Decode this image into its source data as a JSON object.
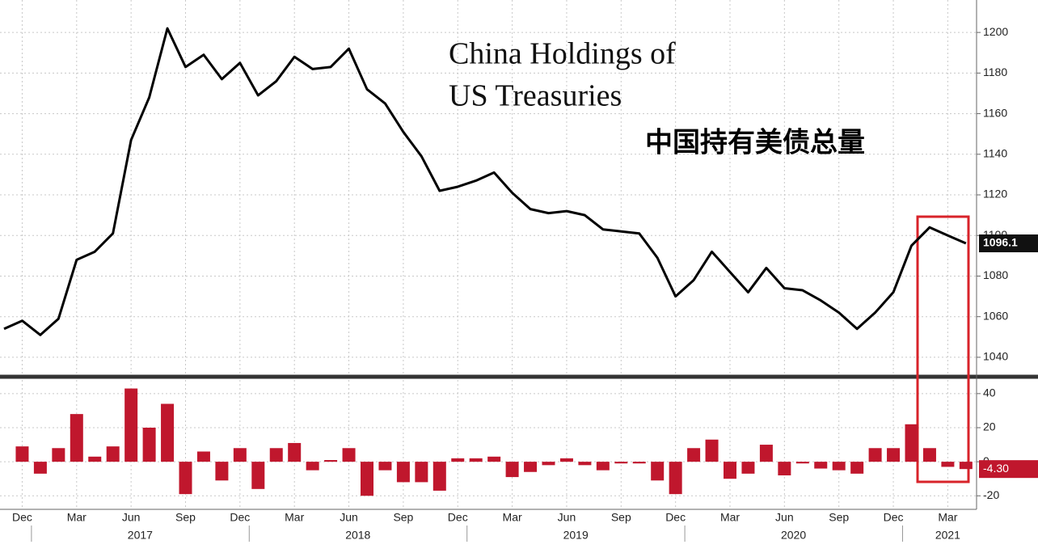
{
  "chart_data": [
    {
      "type": "line",
      "title": "China Holdings of",
      "title_line2": "US Treasuries",
      "subtitle": "中国持有美债总量",
      "ylim": [
        1032,
        1212
      ],
      "yticks": [
        1040,
        1060,
        1080,
        1100,
        1120,
        1140,
        1160,
        1180,
        1200
      ],
      "grid": true,
      "series": [
        {
          "color": "#000000",
          "values": [
            1054,
            1058,
            1051,
            1059,
            1088,
            1092,
            1101,
            1147,
            1168,
            1202,
            1183,
            1189,
            1177,
            1185,
            1169,
            1176,
            1188,
            1182,
            1183,
            1192,
            1172,
            1165,
            1151,
            1139,
            1122,
            1124,
            1127,
            1131,
            1121,
            1113,
            1111,
            1112,
            1110,
            1103,
            1102,
            1101,
            1089,
            1070,
            1078,
            1092,
            1082,
            1072,
            1084,
            1074,
            1073,
            1068,
            1062,
            1054,
            1062,
            1072,
            1095,
            1104,
            1100,
            1096.1
          ],
          "end_label": "1096.1"
        }
      ]
    },
    {
      "type": "bar",
      "ylim": [
        -27,
        48
      ],
      "yticks": [
        -20,
        0,
        20,
        40
      ],
      "grid": true,
      "color": "#c0172d",
      "categories": [
        null,
        "Dec",
        null,
        null,
        "Mar",
        null,
        null,
        "Jun",
        null,
        null,
        "Sep",
        null,
        null,
        "Dec",
        null,
        null,
        "Mar",
        null,
        null,
        "Jun",
        null,
        null,
        "Sep",
        null,
        null,
        "Dec",
        null,
        null,
        "Mar",
        null,
        null,
        "Jun",
        null,
        null,
        "Sep",
        null,
        null,
        "Dec",
        null,
        null,
        "Mar",
        null,
        null,
        "Jun",
        null,
        null,
        "Sep",
        null,
        null,
        "Dec",
        null,
        null,
        "Mar",
        null
      ],
      "years": [
        "2017",
        "2018",
        "2019",
        "2020",
        "2021"
      ],
      "values": [
        null,
        9,
        -7,
        8,
        28,
        3,
        9,
        43,
        20,
        34,
        -19,
        6,
        -11,
        8,
        -16,
        8,
        11,
        -5,
        1,
        8,
        -20,
        -5,
        -12,
        -12,
        -17,
        2,
        2,
        3,
        -9,
        -6,
        -2,
        2,
        -2,
        -5,
        -1,
        -1,
        -11,
        -19,
        8,
        13,
        -10,
        -7,
        10,
        -8,
        -1,
        -4,
        -5,
        -7,
        8,
        8,
        22,
        8,
        -3,
        -4.3
      ],
      "end_label": "-4.30"
    }
  ]
}
